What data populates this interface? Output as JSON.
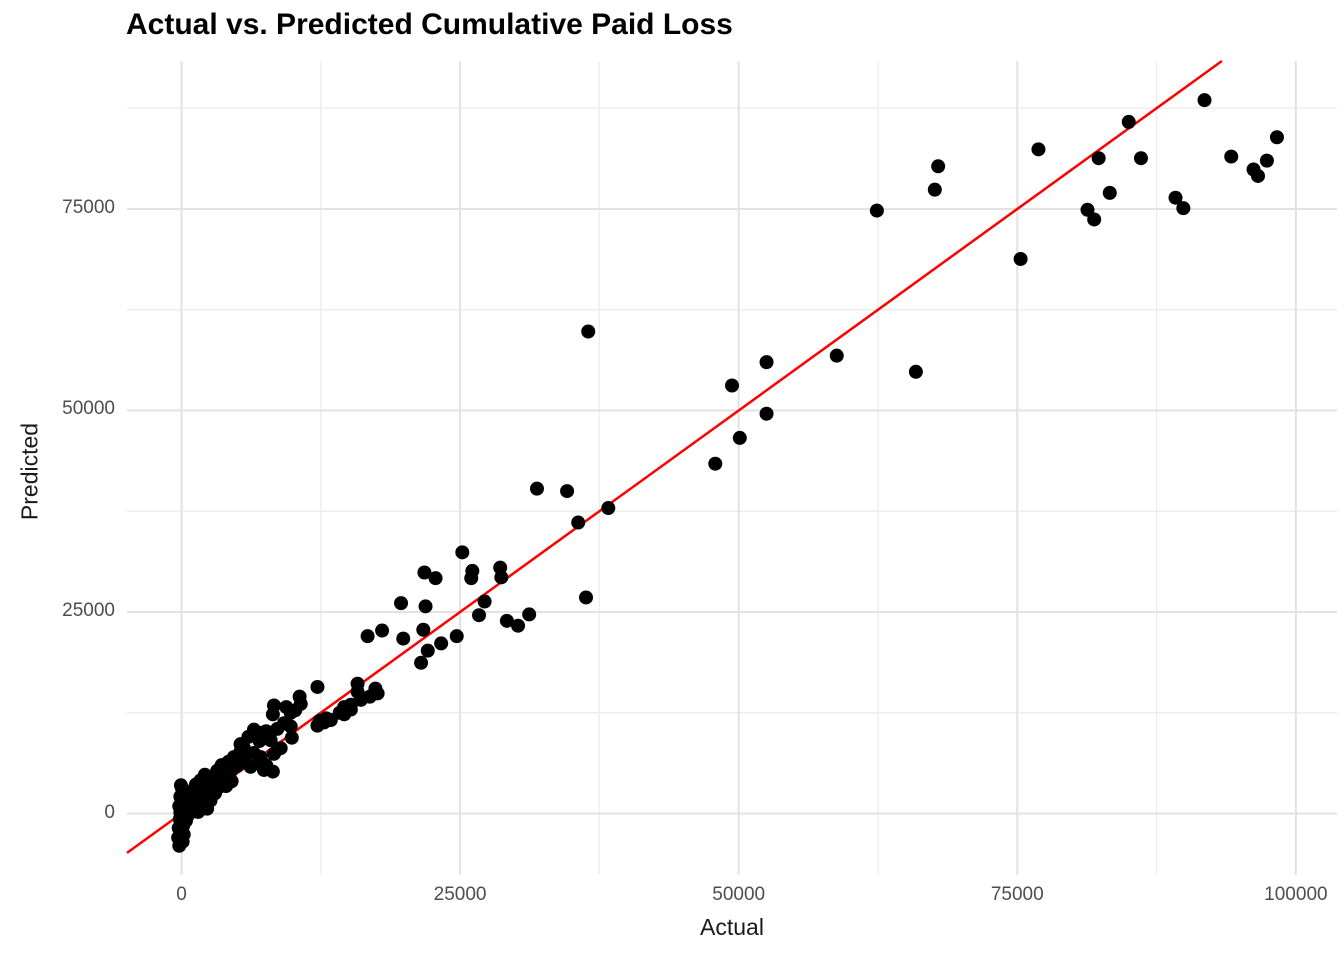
{
  "title": "Actual vs. Predicted Cumulative Paid Loss",
  "colors": {
    "background": "#ffffff",
    "point": "#000000",
    "reference_line": "#ff0000",
    "grid_major": "#e2e2e2",
    "grid_minor": "#ededed",
    "tick_text": "#4d4d4d",
    "axis_title_text": "#1a1a1a",
    "title_text": "#000000"
  },
  "chart_data": {
    "type": "scatter",
    "title": "Actual vs. Predicted Cumulative Paid Loss",
    "xlabel": "Actual",
    "ylabel": "Predicted",
    "x_ticks": [
      0,
      25000,
      50000,
      75000,
      100000
    ],
    "y_ticks": [
      0,
      25000,
      50000,
      75000
    ],
    "x_minor_ticks": [
      12500,
      37500,
      62500,
      87500
    ],
    "y_minor_ticks": [
      12500,
      37500,
      62500,
      87500
    ],
    "xlim": [
      -4890,
      103690
    ],
    "ylim": [
      -7630,
      93360
    ],
    "grid": true,
    "legend": "none",
    "point_style": {
      "color": "#000000",
      "radius": 7
    },
    "reference_line": {
      "kind": "identity",
      "slope": 1,
      "intercept": 0,
      "color": "#ff0000",
      "width": 2.5
    },
    "points": [
      [
        62400,
        74800
      ],
      [
        67900,
        80300
      ],
      [
        67600,
        77400
      ],
      [
        76900,
        82400
      ],
      [
        85000,
        85800
      ],
      [
        82300,
        81300
      ],
      [
        86100,
        81300
      ],
      [
        83300,
        77000
      ],
      [
        81300,
        74900
      ],
      [
        81900,
        73700
      ],
      [
        89200,
        76400
      ],
      [
        89900,
        75100
      ],
      [
        91800,
        88500
      ],
      [
        94200,
        81500
      ],
      [
        96200,
        79900
      ],
      [
        96600,
        79100
      ],
      [
        97400,
        81000
      ],
      [
        98300,
        83900
      ],
      [
        75300,
        68800
      ],
      [
        36500,
        59800
      ],
      [
        52500,
        56000
      ],
      [
        58800,
        56800
      ],
      [
        65900,
        54800
      ],
      [
        49400,
        53100
      ],
      [
        52500,
        49600
      ],
      [
        50100,
        46600
      ],
      [
        47900,
        43400
      ],
      [
        31900,
        40300
      ],
      [
        34600,
        40000
      ],
      [
        38300,
        37900
      ],
      [
        35600,
        36100
      ],
      [
        25200,
        32400
      ],
      [
        26100,
        30100
      ],
      [
        26000,
        29200
      ],
      [
        28600,
        30500
      ],
      [
        28700,
        29300
      ],
      [
        21800,
        29900
      ],
      [
        22800,
        29200
      ],
      [
        19700,
        26100
      ],
      [
        21900,
        25700
      ],
      [
        36300,
        26800
      ],
      [
        26700,
        24600
      ],
      [
        27200,
        26300
      ],
      [
        29200,
        23900
      ],
      [
        30200,
        23300
      ],
      [
        31200,
        24700
      ],
      [
        18000,
        22700
      ],
      [
        21700,
        22800
      ],
      [
        19900,
        21700
      ],
      [
        24700,
        22000
      ],
      [
        23300,
        21100
      ],
      [
        22100,
        20200
      ],
      [
        21500,
        18700
      ],
      [
        16700,
        22000
      ],
      [
        12200,
        15700
      ],
      [
        15800,
        16100
      ],
      [
        15800,
        15100
      ],
      [
        17400,
        15500
      ],
      [
        10600,
        14500
      ],
      [
        10700,
        13600
      ],
      [
        8300,
        13400
      ],
      [
        8200,
        12300
      ],
      [
        9400,
        13200
      ],
      [
        9800,
        12500
      ],
      [
        10200,
        12800
      ],
      [
        14600,
        13200
      ],
      [
        15200,
        13500
      ],
      [
        14200,
        12500
      ],
      [
        12400,
        11500
      ],
      [
        13000,
        11800
      ],
      [
        9200,
        11200
      ],
      [
        9800,
        10800
      ],
      [
        8600,
        10500
      ],
      [
        7100,
        10000
      ],
      [
        7600,
        10200
      ],
      [
        6500,
        10400
      ],
      [
        6000,
        9500
      ],
      [
        7000,
        9000
      ],
      [
        8000,
        9100
      ],
      [
        8900,
        8100
      ],
      [
        9900,
        9400
      ],
      [
        12200,
        10900
      ],
      [
        12800,
        11300
      ],
      [
        13400,
        11600
      ],
      [
        14600,
        12300
      ],
      [
        15200,
        12900
      ],
      [
        16100,
        14100
      ],
      [
        16900,
        14500
      ],
      [
        17600,
        14900
      ],
      [
        5300,
        8600
      ],
      [
        5600,
        8100
      ],
      [
        6500,
        7500
      ],
      [
        7100,
        7000
      ],
      [
        8300,
        7400
      ],
      [
        7400,
        5400
      ],
      [
        7100,
        6600
      ],
      [
        7600,
        6000
      ],
      [
        6200,
        5800
      ],
      [
        8200,
        5200
      ],
      [
        -200,
        -4000
      ],
      [
        100,
        -3500
      ],
      [
        -300,
        -3000
      ],
      [
        200,
        -2600
      ],
      [
        0,
        -2200
      ],
      [
        -250,
        -1800
      ],
      [
        150,
        -1500
      ],
      [
        50,
        -1100
      ],
      [
        -150,
        -700
      ],
      [
        250,
        -300
      ],
      [
        -100,
        100
      ],
      [
        100,
        500
      ],
      [
        -200,
        900
      ],
      [
        200,
        1300
      ],
      [
        0,
        1700
      ],
      [
        -100,
        2100
      ],
      [
        150,
        2600
      ],
      [
        50,
        3100
      ],
      [
        -50,
        3500
      ],
      [
        400,
        -900
      ],
      [
        600,
        -200
      ],
      [
        800,
        600
      ],
      [
        500,
        1200
      ],
      [
        700,
        1900
      ],
      [
        1000,
        300
      ],
      [
        1200,
        1000
      ],
      [
        900,
        2400
      ],
      [
        1100,
        3000
      ],
      [
        1400,
        1600
      ],
      [
        1600,
        2300
      ],
      [
        1300,
        3600
      ],
      [
        1800,
        900
      ],
      [
        2000,
        1800
      ],
      [
        1700,
        4100
      ],
      [
        2200,
        2700
      ],
      [
        2400,
        3500
      ],
      [
        2100,
        4800
      ],
      [
        2600,
        1600
      ],
      [
        2800,
        4200
      ],
      [
        3000,
        2500
      ],
      [
        3200,
        5300
      ],
      [
        3400,
        3300
      ],
      [
        3600,
        6000
      ],
      [
        3800,
        4500
      ],
      [
        4000,
        3400
      ],
      [
        4200,
        6400
      ],
      [
        4400,
        5200
      ],
      [
        4700,
        7000
      ],
      [
        5000,
        5900
      ],
      [
        5300,
        7700
      ],
      [
        5700,
        6700
      ],
      [
        4500,
        4000
      ],
      [
        3900,
        5500
      ],
      [
        2300,
        600
      ],
      [
        2700,
        3200
      ],
      [
        1500,
        200
      ]
    ]
  }
}
